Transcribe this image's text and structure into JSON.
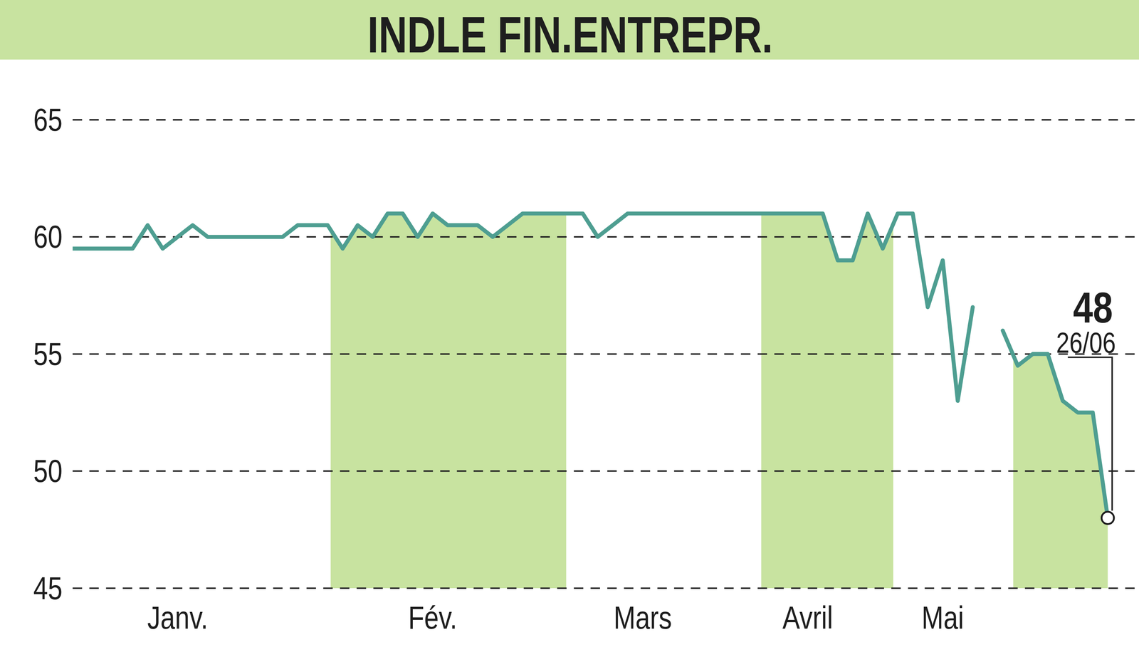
{
  "chart_data": {
    "type": "line",
    "title": "INDLE FIN.ENTREPR.",
    "categories": [
      null,
      null,
      null,
      null,
      null,
      null,
      null,
      "Janv.",
      null,
      null,
      null,
      null,
      null,
      null,
      null,
      null,
      null,
      null,
      null,
      null,
      null,
      null,
      null,
      null,
      "Fév.",
      null,
      null,
      null,
      null,
      null,
      null,
      null,
      null,
      null,
      null,
      null,
      null,
      null,
      "Mars",
      null,
      null,
      null,
      null,
      null,
      null,
      null,
      null,
      null,
      null,
      "Avril",
      null,
      null,
      null,
      null,
      null,
      null,
      null,
      null,
      "Mai",
      null,
      null,
      null,
      null,
      null,
      null,
      null,
      null,
      null,
      null,
      null
    ],
    "values": [
      59.5,
      59.5,
      59.5,
      59.5,
      59.5,
      60.5,
      59.5,
      60,
      60.5,
      60,
      60,
      60,
      60,
      60,
      60,
      60.5,
      60.5,
      60.5,
      59.5,
      60.5,
      60,
      61,
      61,
      60,
      61,
      60.5,
      60.5,
      60.5,
      60,
      60.5,
      61,
      61,
      61,
      61,
      61,
      60,
      60.5,
      61,
      61,
      61,
      61,
      61,
      61,
      61,
      61,
      61,
      61,
      61,
      61,
      61,
      61,
      59,
      59,
      61,
      59.5,
      61,
      61,
      57,
      59,
      53,
      57,
      null,
      56,
      54.5,
      55,
      55,
      53,
      52.5,
      52.5,
      48
    ],
    "color": "#4e9e91",
    "ylim": [
      45,
      65
    ],
    "yticks": [
      45,
      50,
      55,
      60,
      65
    ],
    "grid": true,
    "annotations": [
      {
        "text": "48"
      },
      {
        "text": "26/06"
      }
    ]
  }
}
